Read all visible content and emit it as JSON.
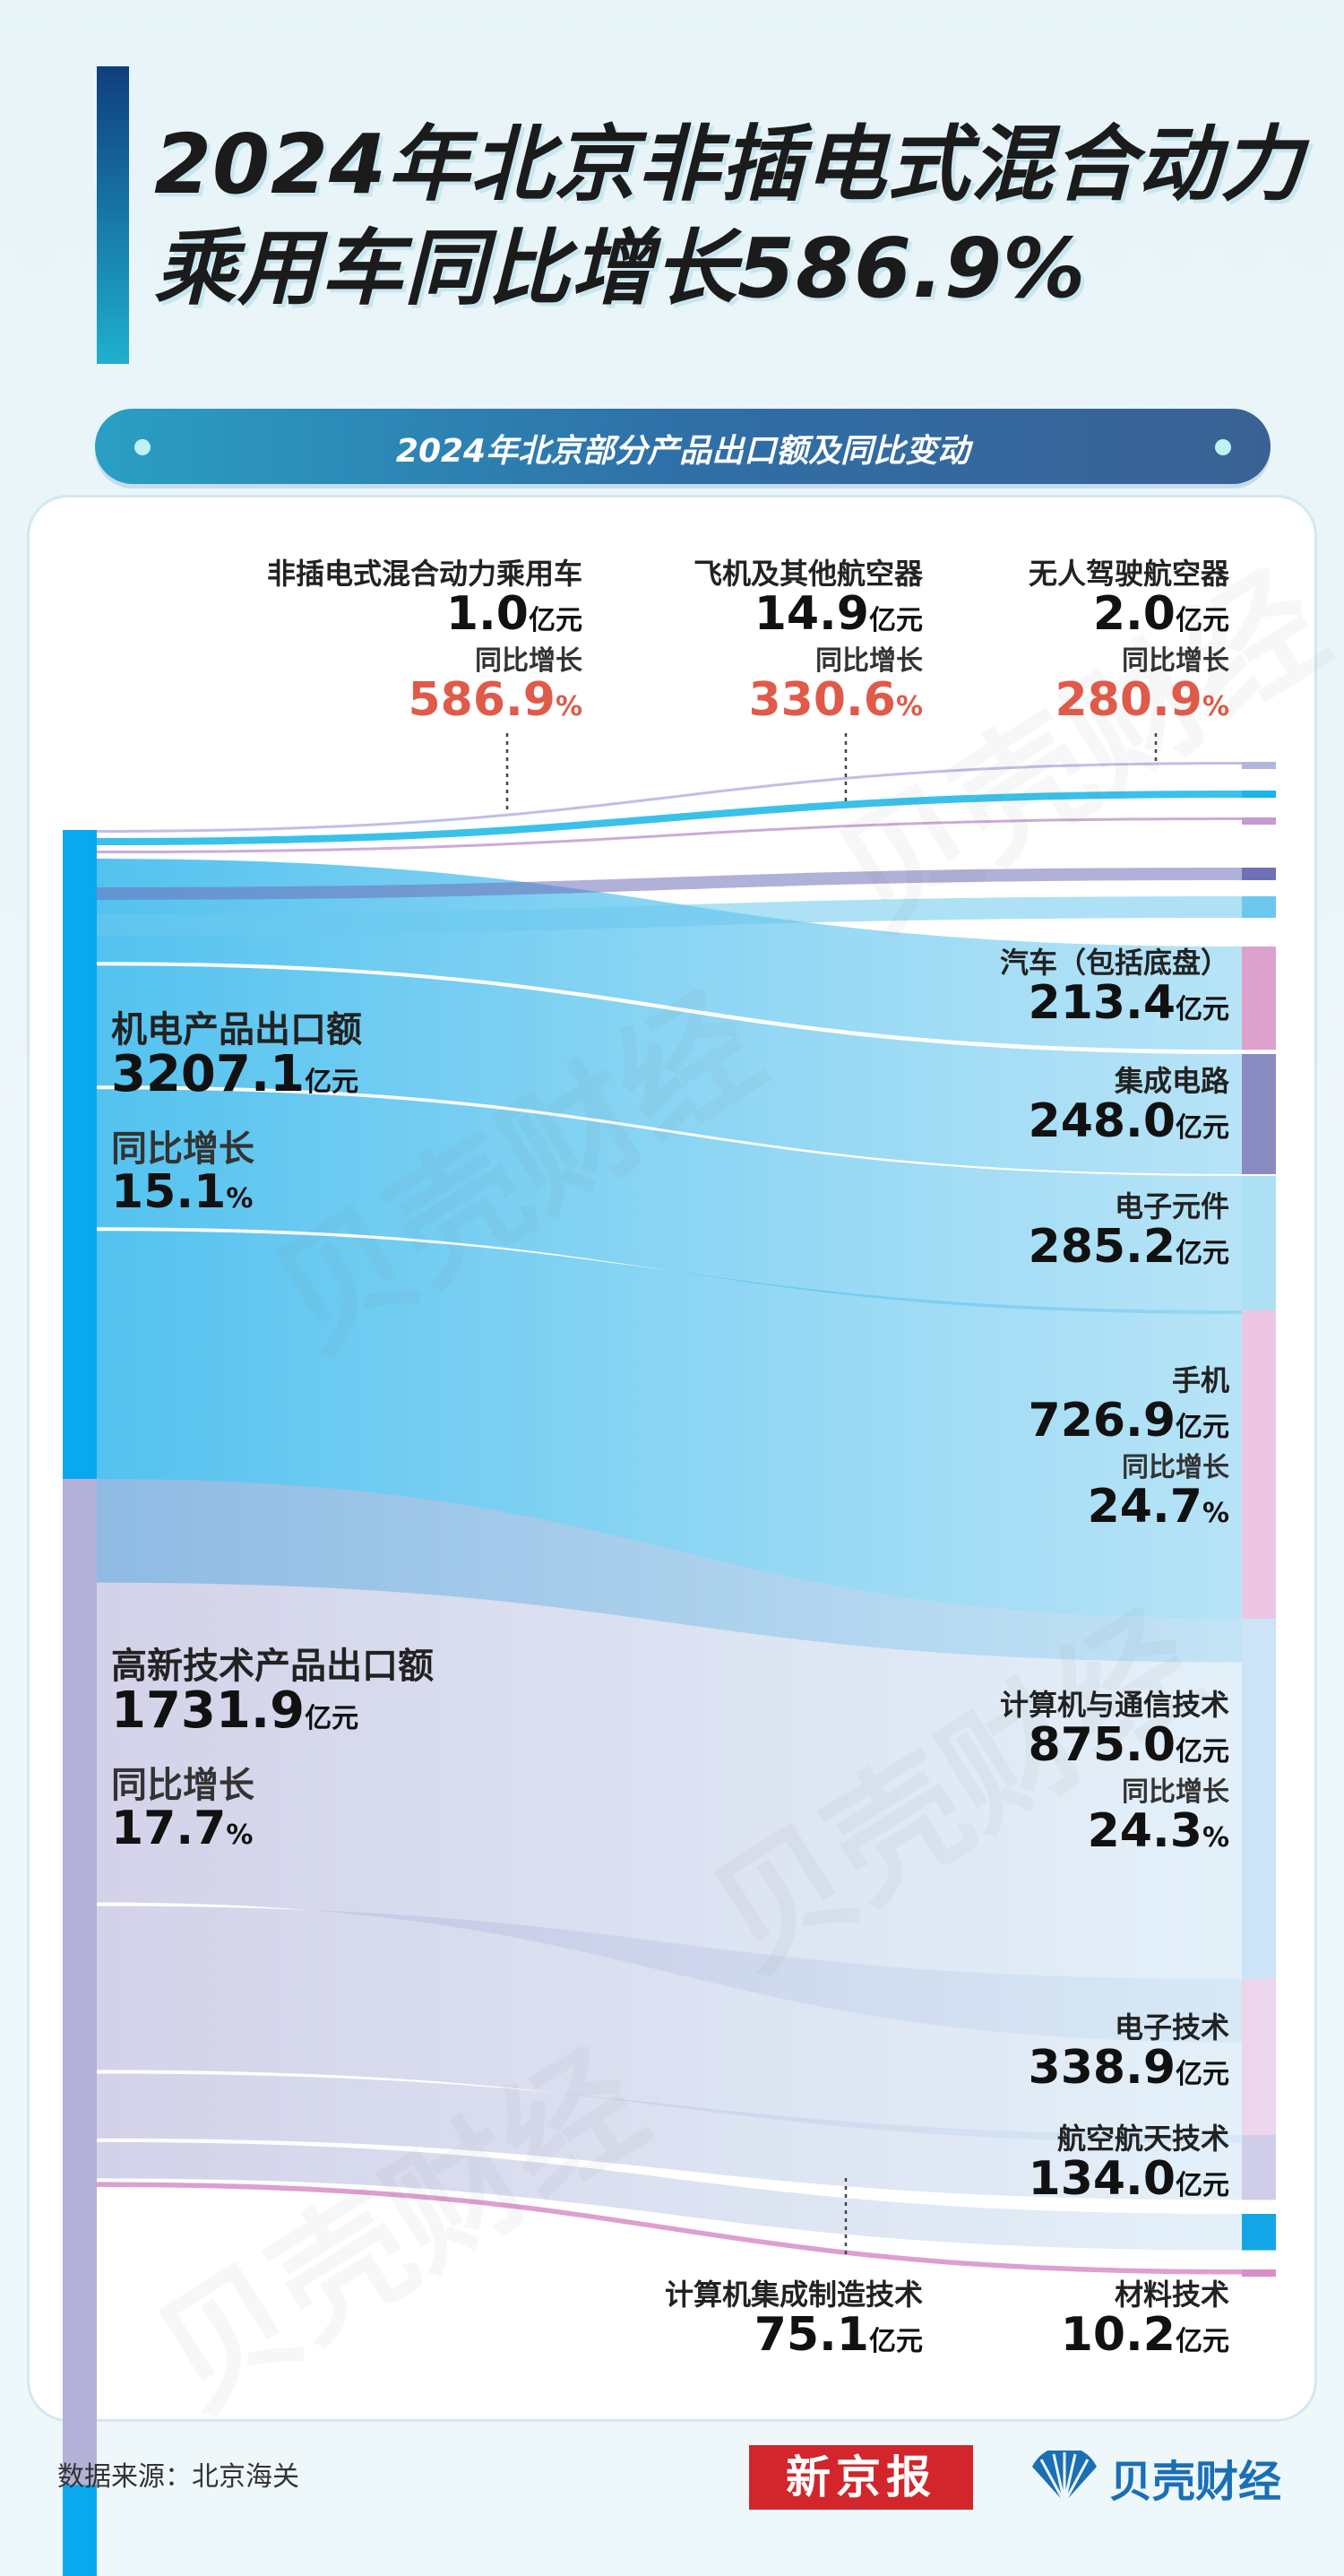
{
  "header": {
    "title_line1": "2024年北京非插电式混合动力",
    "title_line2": "乘用车同比增长586.9%",
    "subtitle": "2024年北京部分产品出口额及同比变动"
  },
  "colors": {
    "electro_bar": "#1aaeea",
    "hitech_bar": "#b3b3d9",
    "growth_red": "#e05a4a"
  },
  "chart_data": {
    "type": "sankey",
    "unit": "亿元",
    "sources": [
      {
        "name": "机电产品出口额",
        "value": 3207.1,
        "growth_label": "同比增长",
        "growth": "15.1%"
      },
      {
        "name": "高新技术产品出口额",
        "value": 1731.9,
        "growth_label": "同比增长",
        "growth": "17.7%"
      }
    ],
    "flows": [
      {
        "source": "机电产品出口额",
        "target": "非插电式混合动力乘用车",
        "value": 1.0,
        "growth": "586.9%"
      },
      {
        "source": "机电产品出口额",
        "target": "飞机及其他航空器",
        "value": 14.9,
        "growth": "330.6%"
      },
      {
        "source": "机电产品出口额",
        "target": "无人驾驶航空器",
        "value": 2.0,
        "growth": "280.9%"
      },
      {
        "source": "机电产品出口额",
        "target": "汽车（包括底盘）",
        "value": 213.4
      },
      {
        "source": "机电产品出口额",
        "target": "集成电路",
        "value": 248.0
      },
      {
        "source": "机电产品出口额",
        "target": "电子元件",
        "value": 285.2
      },
      {
        "source": "机电产品出口额",
        "target": "手机",
        "value": 726.9,
        "growth": "24.7%"
      },
      {
        "source": "高新技术产品出口额",
        "target": "计算机与通信技术",
        "value": 875.0,
        "growth": "24.3%"
      },
      {
        "source": "高新技术产品出口额",
        "target": "电子技术",
        "value": 338.9
      },
      {
        "source": "高新技术产品出口额",
        "target": "航空航天技术",
        "value": 134.0
      },
      {
        "source": "高新技术产品出口额",
        "target": "计算机集成制造技术",
        "value": 75.1
      },
      {
        "source": "高新技术产品出口额",
        "target": "材料技术",
        "value": 10.2
      }
    ]
  },
  "labels": {
    "unit": "亿元",
    "growth_label": "同比增长",
    "top": [
      {
        "name": "非插电式混合动力乘用车",
        "value": "1.0",
        "growth": "586.9",
        "pct": "%"
      },
      {
        "name": "飞机及其他航空器",
        "value": "14.9",
        "growth": "330.6",
        "pct": "%"
      },
      {
        "name": "无人驾驶航空器",
        "value": "2.0",
        "growth": "280.9",
        "pct": "%"
      }
    ],
    "right": [
      {
        "name": "汽车（包括底盘）",
        "value": "213.4"
      },
      {
        "name": "集成电路",
        "value": "248.0"
      },
      {
        "name": "电子元件",
        "value": "285.2"
      },
      {
        "name": "手机",
        "value": "726.9",
        "growth": "24.7",
        "pct": "%"
      },
      {
        "name": "计算机与通信技术",
        "value": "875.0",
        "growth": "24.3",
        "pct": "%"
      },
      {
        "name": "电子技术",
        "value": "338.9"
      },
      {
        "name": "航空航天技术",
        "value": "134.0"
      },
      {
        "name": "材料技术",
        "value": "10.2"
      }
    ],
    "bottom": {
      "name": "计算机集成制造技术",
      "value": "75.1"
    },
    "left": [
      {
        "name": "机电产品出口额",
        "value": "3207.1",
        "growth": "15.1",
        "pct": "%"
      },
      {
        "name": "高新技术产品出口额",
        "value": "1731.9",
        "growth": "17.7",
        "pct": "%"
      }
    ]
  },
  "watermark": "贝壳财经",
  "footer": {
    "source": "数据来源：北京海关",
    "logo1": "新京报",
    "logo2": "贝壳财经"
  }
}
